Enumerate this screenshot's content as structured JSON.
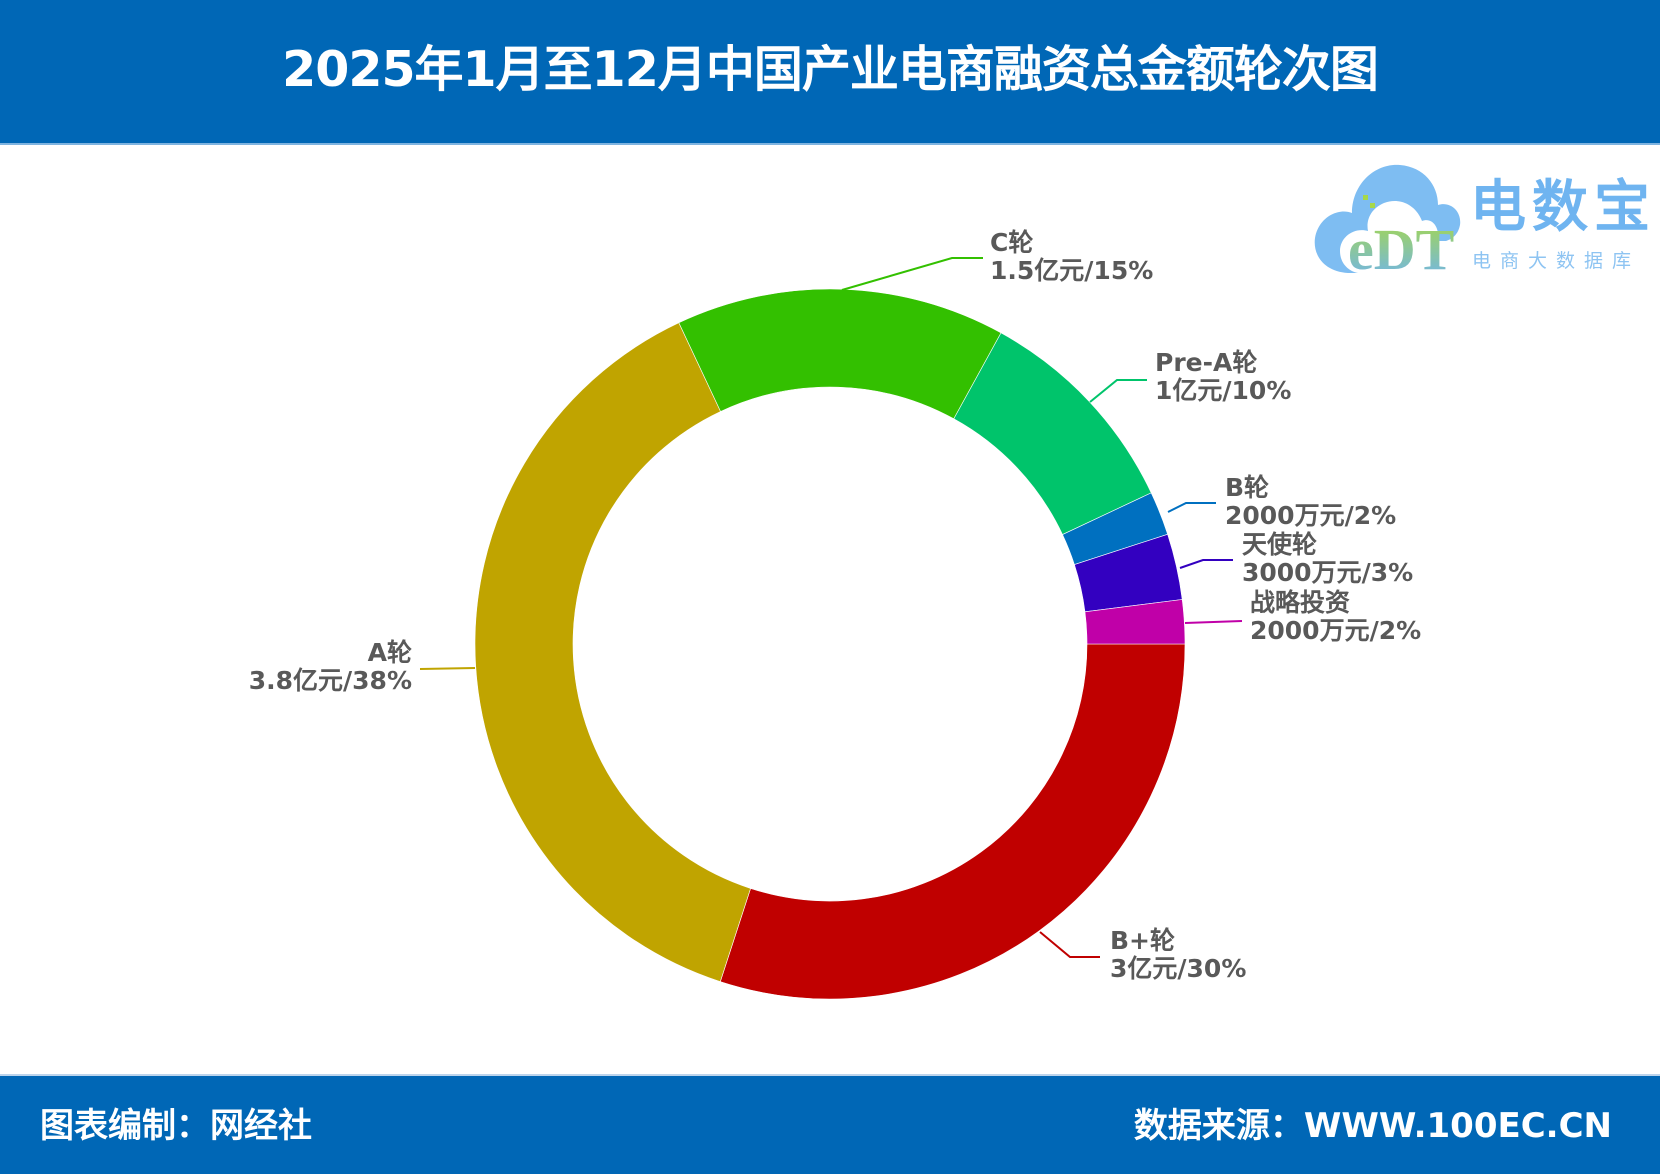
{
  "header": {
    "title": "2025年1月至12月中国产业电商融资总金额轮次图",
    "background_color": "#0067B6"
  },
  "logo": {
    "mark_text": "eDT",
    "name": "电数宝",
    "subtitle": "电商大数据库"
  },
  "footer": {
    "left_text": "图表编制：网经社",
    "right_text": "数据来源：WWW.100EC.CN"
  },
  "chart_data": {
    "type": "pie",
    "subtype": "donut",
    "title": "2025年1月至12月中国产业电商融资总金额轮次图",
    "start_angle_deg": 0,
    "direction": "clockwise",
    "center": [
      830,
      644
    ],
    "outer_radius": 355,
    "inner_radius": 257,
    "unit": "元",
    "slices": [
      {
        "name": "B+轮",
        "amount_label": "3亿元",
        "amount_yuan": 300000000,
        "percent": 30,
        "color": "#C00000"
      },
      {
        "name": "A轮",
        "amount_label": "3.8亿元",
        "amount_yuan": 380000000,
        "percent": 38,
        "color": "#C0A400"
      },
      {
        "name": "C轮",
        "amount_label": "1.5亿元",
        "amount_yuan": 150000000,
        "percent": 15,
        "color": "#33C000"
      },
      {
        "name": "Pre-A轮",
        "amount_label": "1亿元",
        "amount_yuan": 100000000,
        "percent": 10,
        "color": "#00C46B"
      },
      {
        "name": "B轮",
        "amount_label": "2000万元",
        "amount_yuan": 20000000,
        "percent": 2,
        "color": "#0070C0"
      },
      {
        "name": "天使轮",
        "amount_label": "3000万元",
        "amount_yuan": 30000000,
        "percent": 3,
        "color": "#3300C0"
      },
      {
        "name": "战略投资",
        "amount_label": "2000万元",
        "amount_yuan": 20000000,
        "percent": 2,
        "color": "#C000A8"
      }
    ],
    "labels": {
      "bp": {
        "line1": "B+轮",
        "line2": "3亿元/30%"
      },
      "a": {
        "line1": "A轮",
        "line2": "3.8亿元/38%"
      },
      "c": {
        "line1": "C轮",
        "line2": "1.5亿元/15%"
      },
      "prea": {
        "line1": "Pre-A轮",
        "line2": "1亿元/10%"
      },
      "b": {
        "line1": "B轮",
        "line2": "2000万元/2%"
      },
      "angel": {
        "line1": "天使轮",
        "line2": "3000万元/3%"
      },
      "strat": {
        "line1": "战略投资",
        "line2": "2000万元/2%"
      }
    },
    "legend": null
  }
}
